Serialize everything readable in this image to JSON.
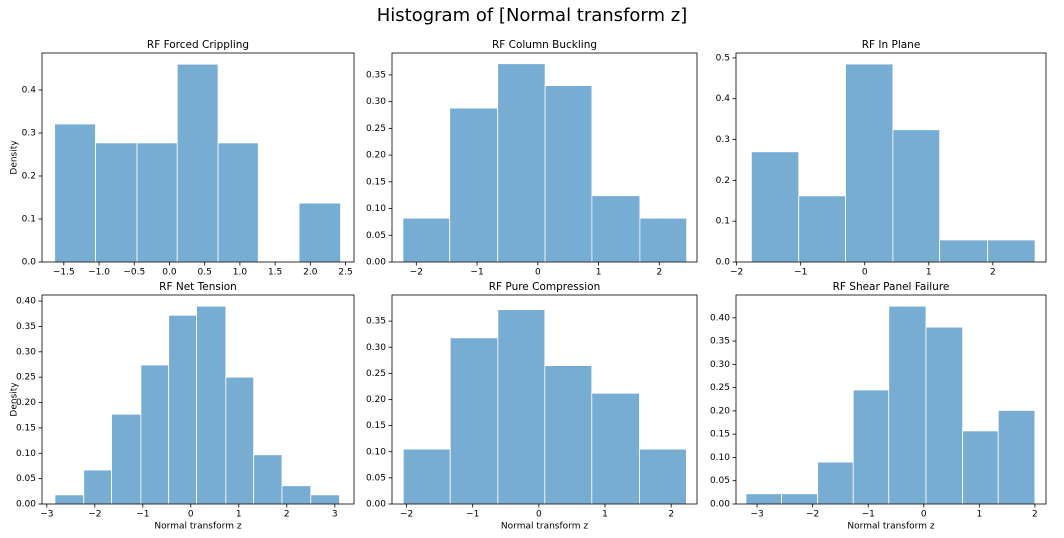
{
  "title": "Histogram of [Normal transform z]",
  "chart_data": [
    {
      "type": "histogram",
      "title": "RF Forced Crippling",
      "ylabel": "Density",
      "color": "#77acd3",
      "bins": [
        -1.63,
        -1.05,
        -0.46,
        0.11,
        0.69,
        1.26,
        1.84,
        2.43
      ],
      "values": [
        0.321,
        0.277,
        0.277,
        0.46,
        0.277,
        0,
        0.137
      ],
      "xlim": [
        -1.81,
        2.62
      ],
      "ylim": [
        0,
        0.486
      ],
      "xticks": [
        {
          "value": -1.5,
          "label": "−1.5"
        },
        {
          "value": -1.0,
          "label": "−1.0"
        },
        {
          "value": -0.5,
          "label": "−0.5"
        },
        {
          "value": 0,
          "label": "0.0"
        },
        0.5,
        {
          "value": 1.0,
          "label": "1.0"
        },
        1.5,
        {
          "value": 2.0,
          "label": "2.0"
        },
        2.5
      ],
      "yticks": [
        {
          "value": 0,
          "label": "0.0"
        },
        0.1,
        0.2,
        0.3,
        0.4
      ]
    },
    {
      "type": "histogram",
      "title": "RF Column Buckling",
      "color": "#77acd3",
      "bins": [
        -2.22,
        -1.45,
        -0.66,
        0.12,
        0.89,
        1.68,
        2.45
      ],
      "values": [
        0.082,
        0.288,
        0.371,
        0.33,
        0.124,
        0.082
      ],
      "xlim": [
        -2.4,
        2.62
      ],
      "ylim": [
        0,
        0.391
      ],
      "xticks": [
        {
          "value": -2,
          "label": "−2"
        },
        {
          "value": -1,
          "label": "−1"
        },
        0,
        1,
        2
      ],
      "yticks": [
        {
          "value": 0,
          "label": "0.00"
        },
        0.05,
        {
          "value": 0.1,
          "label": "0.10"
        },
        0.15,
        {
          "value": 0.2,
          "label": "0.20"
        },
        0.25,
        {
          "value": 0.3,
          "label": "0.30"
        },
        0.35
      ]
    },
    {
      "type": "histogram",
      "title": "RF In Plane",
      "color": "#77acd3",
      "bins": [
        -1.77,
        -1.03,
        -0.3,
        0.44,
        1.17,
        1.92,
        2.66
      ],
      "values": [
        0.27,
        0.162,
        0.485,
        0.324,
        0.054,
        0.054
      ],
      "xlim": [
        -2.01,
        2.83
      ],
      "ylim": [
        0,
        0.512
      ],
      "xticks": [
        {
          "value": -2,
          "label": "−2"
        },
        {
          "value": -1,
          "label": "−1"
        },
        0,
        1,
        2
      ],
      "yticks": [
        {
          "value": 0,
          "label": "0.0"
        },
        0.1,
        0.2,
        0.3,
        0.4,
        0.5
      ]
    },
    {
      "type": "histogram",
      "title": "RF Net Tension",
      "xlabel": "Normal transform z",
      "ylabel": "Density",
      "color": "#77acd3",
      "bins": [
        -2.83,
        -2.23,
        -1.65,
        -1.04,
        -0.46,
        0.12,
        0.73,
        1.31,
        1.9,
        2.5,
        3.1
      ],
      "values": [
        0.018,
        0.067,
        0.177,
        0.274,
        0.372,
        0.39,
        0.25,
        0.097,
        0.036,
        0.018
      ],
      "xlim": [
        -3.1,
        3.4
      ],
      "ylim": [
        0,
        0.412
      ],
      "xticks": [
        {
          "value": -3,
          "label": "−3"
        },
        {
          "value": -2,
          "label": "−2"
        },
        {
          "value": -1,
          "label": "−1"
        },
        0,
        1,
        2,
        3
      ],
      "yticks": [
        {
          "value": 0,
          "label": "0.00"
        },
        0.05,
        {
          "value": 0.1,
          "label": "0.10"
        },
        0.15,
        {
          "value": 0.2,
          "label": "0.20"
        },
        0.25,
        {
          "value": 0.3,
          "label": "0.30"
        },
        0.35,
        {
          "value": 0.4,
          "label": "0.40"
        }
      ]
    },
    {
      "type": "histogram",
      "title": "RF Pure Compression",
      "xlabel": "Normal transform z",
      "color": "#77acd3",
      "bins": [
        -2.05,
        -1.34,
        -0.62,
        0.09,
        0.8,
        1.52,
        2.23
      ],
      "values": [
        0.105,
        0.318,
        0.372,
        0.265,
        0.212,
        0.105
      ],
      "xlim": [
        -2.22,
        2.39
      ],
      "ylim": [
        0,
        0.4
      ],
      "xticks": [
        {
          "value": -2,
          "label": "−2"
        },
        {
          "value": -1,
          "label": "−1"
        },
        0,
        1,
        2
      ],
      "yticks": [
        {
          "value": 0,
          "label": "0.00"
        },
        0.05,
        {
          "value": 0.1,
          "label": "0.10"
        },
        0.15,
        {
          "value": 0.2,
          "label": "0.20"
        },
        0.25,
        {
          "value": 0.3,
          "label": "0.30"
        },
        0.35
      ]
    },
    {
      "type": "histogram",
      "title": "RF Shear Panel Failure",
      "xlabel": "Normal transform z",
      "color": "#77acd3",
      "bins": [
        -3.2,
        -2.56,
        -1.91,
        -1.27,
        -0.63,
        0.04,
        0.7,
        1.34,
        2.0
      ],
      "values": [
        0.022,
        0.022,
        0.09,
        0.245,
        0.425,
        0.38,
        0.157,
        0.201
      ],
      "xlim": [
        -3.38,
        2.2
      ],
      "ylim": [
        0,
        0.449
      ],
      "xticks": [
        {
          "value": -3,
          "label": "−3"
        },
        {
          "value": -2,
          "label": "−2"
        },
        {
          "value": -1,
          "label": "−1"
        },
        0,
        1,
        2
      ],
      "yticks": [
        {
          "value": 0,
          "label": "0.00"
        },
        0.05,
        {
          "value": 0.1,
          "label": "0.10"
        },
        0.15,
        {
          "value": 0.2,
          "label": "0.20"
        },
        0.25,
        {
          "value": 0.3,
          "label": "0.30"
        },
        0.35,
        {
          "value": 0.4,
          "label": "0.40"
        }
      ]
    }
  ]
}
